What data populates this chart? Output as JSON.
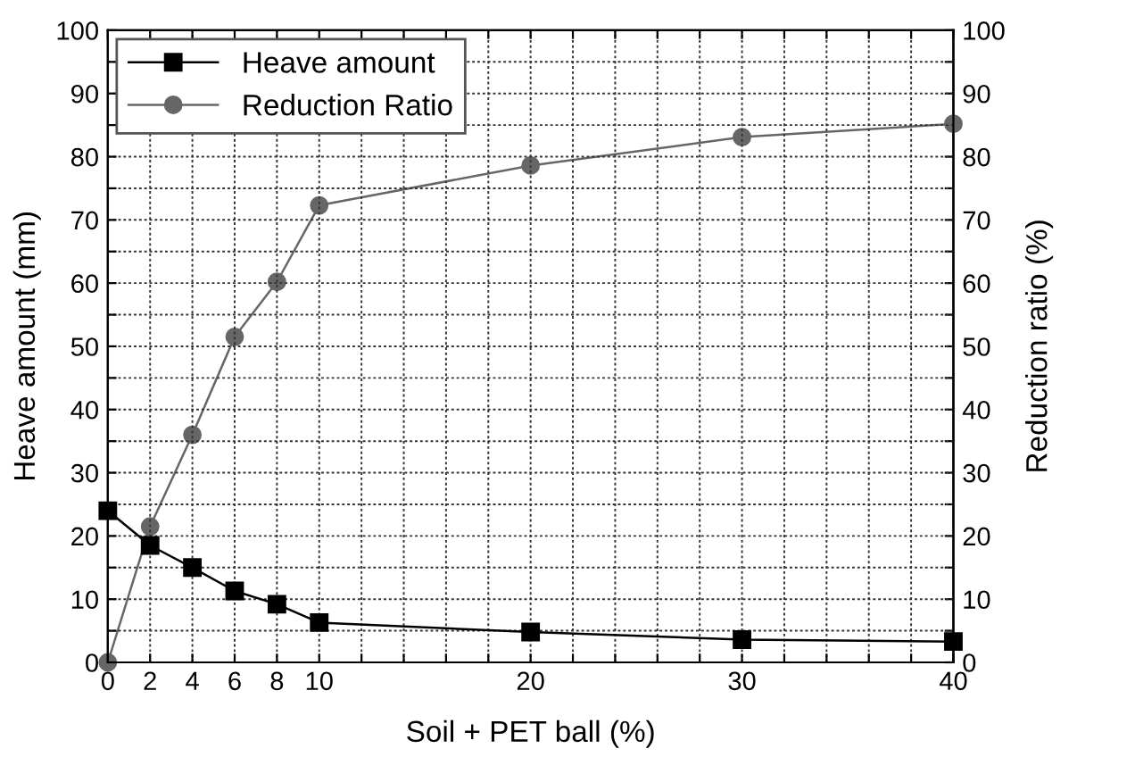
{
  "chart_data": {
    "type": "line",
    "xlabel": "Soil + PET ball (%)",
    "ylabel": "Heave amount (mm)",
    "y2label": "Reduction ratio (%)",
    "x": [
      0,
      2,
      4,
      6,
      8,
      10,
      20,
      30,
      40
    ],
    "series": [
      {
        "name": "Heave amount",
        "color": "#000000",
        "marker": "square",
        "values": [
          24,
          18.5,
          15,
          11.3,
          9.2,
          6.3,
          4.8,
          3.6,
          3.3
        ]
      },
      {
        "name": "Reduction Ratio",
        "color": "#666666",
        "marker": "circle",
        "axis": "y2",
        "values": [
          0,
          21.5,
          36,
          51.5,
          60.2,
          72.3,
          78.6,
          83.1,
          85.2
        ]
      }
    ],
    "xlim": [
      0,
      40
    ],
    "xticks": [
      0,
      2,
      4,
      6,
      8,
      10,
      {
        "value": 12,
        "label": null
      },
      {
        "value": 14,
        "label": null
      },
      {
        "value": 16,
        "label": null
      },
      {
        "value": 18,
        "label": null
      },
      20,
      {
        "value": 22,
        "label": null
      },
      {
        "value": 24,
        "label": null
      },
      {
        "value": 26,
        "label": null
      },
      {
        "value": 28,
        "label": null
      },
      30,
      {
        "value": 32,
        "label": null
      },
      {
        "value": 34,
        "label": null
      },
      {
        "value": 36,
        "label": null
      },
      {
        "value": 38,
        "label": null
      },
      40
    ],
    "ylim": [
      0,
      100
    ],
    "yticks": [
      0,
      {
        "value": 5,
        "label": null
      },
      10,
      {
        "value": 15,
        "label": null
      },
      20,
      {
        "value": 25,
        "label": null
      },
      30,
      {
        "value": 35,
        "label": null
      },
      40,
      {
        "value": 45,
        "label": null
      },
      50,
      {
        "value": 55,
        "label": null
      },
      60,
      {
        "value": 65,
        "label": null
      },
      70,
      {
        "value": 75,
        "label": null
      },
      80,
      {
        "value": 85,
        "label": null
      },
      90,
      {
        "value": 95,
        "label": null
      },
      100
    ],
    "y2lim": [
      0,
      100
    ],
    "y2ticks": [
      0,
      {
        "value": 5,
        "label": null
      },
      10,
      {
        "value": 15,
        "label": null
      },
      20,
      {
        "value": 25,
        "label": null
      },
      30,
      {
        "value": 35,
        "label": null
      },
      40,
      {
        "value": 45,
        "label": null
      },
      50,
      {
        "value": 55,
        "label": null
      },
      60,
      {
        "value": 65,
        "label": null
      },
      70,
      {
        "value": 75,
        "label": null
      },
      80,
      {
        "value": 85,
        "label": null
      },
      90,
      {
        "value": 95,
        "label": null
      },
      100
    ],
    "grid": true,
    "legend": "top left",
    "line_style": "solid"
  }
}
